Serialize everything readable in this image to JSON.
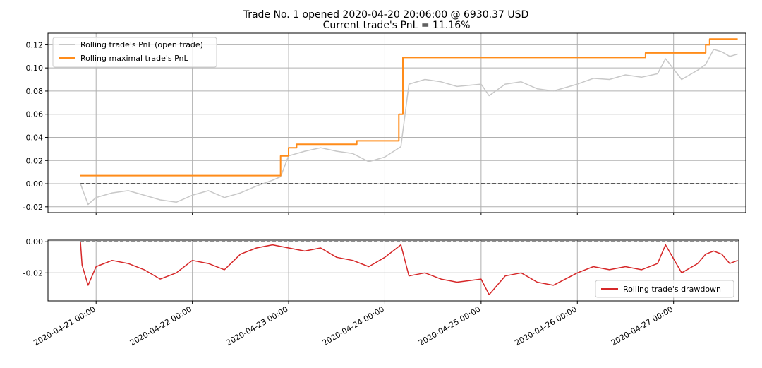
{
  "title_lines": [
    "Trade No. 1 opened 2020-04-20 20:06:00 @ 6930.37 USD",
    "Current trade's PnL = 11.16%"
  ],
  "colors": {
    "open_trade": "#c8c8c8",
    "max_pnl": "#ff8c1a",
    "drawdown": "#d62728",
    "zero_line": "#222222",
    "grid": "#b0b0b0"
  },
  "chart_data": [
    {
      "type": "line",
      "name": "pnl-panel",
      "ylim": [
        -0.025,
        0.13
      ],
      "xlim": [
        "2020-04-20 12:00",
        "2020-04-27 18:00"
      ],
      "yticks": [
        -0.02,
        0.0,
        0.02,
        0.04,
        0.06,
        0.08,
        0.1,
        0.12
      ],
      "ytick_labels": [
        "-0.02",
        "0.00",
        "0.02",
        "0.04",
        "0.06",
        "0.08",
        "0.10",
        "0.12"
      ],
      "grid": true,
      "legend_position": "top-left",
      "zero_line": true,
      "series": [
        {
          "name": "Rolling trade's PnL (open trade)",
          "color_key": "open_trade",
          "points": [
            [
              "2020-04-20 20:06",
              0.0
            ],
            [
              "2020-04-20 22:00",
              -0.018
            ],
            [
              "2020-04-21 00:00",
              -0.012
            ],
            [
              "2020-04-21 04:00",
              -0.008
            ],
            [
              "2020-04-21 08:00",
              -0.006
            ],
            [
              "2020-04-21 12:00",
              -0.01
            ],
            [
              "2020-04-21 16:00",
              -0.014
            ],
            [
              "2020-04-21 20:00",
              -0.016
            ],
            [
              "2020-04-22 00:00",
              -0.01
            ],
            [
              "2020-04-22 04:00",
              -0.006
            ],
            [
              "2020-04-22 08:00",
              -0.012
            ],
            [
              "2020-04-22 12:00",
              -0.008
            ],
            [
              "2020-04-22 16:00",
              -0.002
            ],
            [
              "2020-04-22 20:00",
              0.003
            ],
            [
              "2020-04-22 22:00",
              0.006
            ],
            [
              "2020-04-23 00:00",
              0.024
            ],
            [
              "2020-04-23 04:00",
              0.028
            ],
            [
              "2020-04-23 08:00",
              0.031
            ],
            [
              "2020-04-23 12:00",
              0.028
            ],
            [
              "2020-04-23 16:00",
              0.026
            ],
            [
              "2020-04-23 20:00",
              0.019
            ],
            [
              "2020-04-24 00:00",
              0.023
            ],
            [
              "2020-04-24 04:00",
              0.032
            ],
            [
              "2020-04-24 06:00",
              0.086
            ],
            [
              "2020-04-24 10:00",
              0.09
            ],
            [
              "2020-04-24 14:00",
              0.088
            ],
            [
              "2020-04-24 18:00",
              0.084
            ],
            [
              "2020-04-25 00:00",
              0.086
            ],
            [
              "2020-04-25 02:00",
              0.076
            ],
            [
              "2020-04-25 06:00",
              0.086
            ],
            [
              "2020-04-25 10:00",
              0.088
            ],
            [
              "2020-04-25 14:00",
              0.082
            ],
            [
              "2020-04-25 18:00",
              0.08
            ],
            [
              "2020-04-26 00:00",
              0.086
            ],
            [
              "2020-04-26 04:00",
              0.091
            ],
            [
              "2020-04-26 08:00",
              0.09
            ],
            [
              "2020-04-26 12:00",
              0.094
            ],
            [
              "2020-04-26 16:00",
              0.092
            ],
            [
              "2020-04-26 20:00",
              0.095
            ],
            [
              "2020-04-26 22:00",
              0.108
            ],
            [
              "2020-04-27 02:00",
              0.09
            ],
            [
              "2020-04-27 06:00",
              0.098
            ],
            [
              "2020-04-27 08:00",
              0.103
            ],
            [
              "2020-04-27 10:00",
              0.116
            ],
            [
              "2020-04-27 12:00",
              0.114
            ],
            [
              "2020-04-27 14:00",
              0.11
            ],
            [
              "2020-04-27 16:00",
              0.112
            ]
          ]
        },
        {
          "name": "Rolling maximal trade's PnL",
          "color_key": "max_pnl",
          "points": [
            [
              "2020-04-20 20:06",
              0.007
            ],
            [
              "2020-04-22 21:30",
              0.007
            ],
            [
              "2020-04-22 22:00",
              0.024
            ],
            [
              "2020-04-23 00:00",
              0.031
            ],
            [
              "2020-04-23 02:00",
              0.034
            ],
            [
              "2020-04-23 17:00",
              0.037
            ],
            [
              "2020-04-24 02:00",
              0.037
            ],
            [
              "2020-04-24 03:30",
              0.06
            ],
            [
              "2020-04-24 04:30",
              0.109
            ],
            [
              "2020-04-26 16:00",
              0.109
            ],
            [
              "2020-04-26 17:00",
              0.113
            ],
            [
              "2020-04-27 07:00",
              0.113
            ],
            [
              "2020-04-27 08:00",
              0.12
            ],
            [
              "2020-04-27 09:00",
              0.125
            ],
            [
              "2020-04-27 16:00",
              0.125
            ]
          ]
        }
      ]
    },
    {
      "type": "line",
      "name": "drawdown-panel",
      "ylim": [
        -0.038,
        0.001
      ],
      "xlim": [
        "2020-04-20 12:00",
        "2020-04-27 18:00"
      ],
      "yticks": [
        -0.02,
        0.0
      ],
      "ytick_labels": [
        "-0.02",
        "0.00"
      ],
      "grid": true,
      "legend_position": "bottom-right",
      "zero_line": true,
      "xticks": [
        "2020-04-21 00:00",
        "2020-04-22 00:00",
        "2020-04-23 00:00",
        "2020-04-24 00:00",
        "2020-04-25 00:00",
        "2020-04-26 00:00",
        "2020-04-27 00:00"
      ],
      "xtick_labels": [
        "2020-04-21 00:00",
        "2020-04-22 00:00",
        "2020-04-23 00:00",
        "2020-04-24 00:00",
        "2020-04-25 00:00",
        "2020-04-26 00:00",
        "2020-04-27 00:00"
      ],
      "series": [
        {
          "name": "Rolling trade's drawdown",
          "color_key": "drawdown",
          "points": [
            [
              "2020-04-20 20:06",
              0.0
            ],
            [
              "2020-04-20 20:30",
              -0.015
            ],
            [
              "2020-04-20 22:00",
              -0.028
            ],
            [
              "2020-04-21 00:00",
              -0.016
            ],
            [
              "2020-04-21 04:00",
              -0.012
            ],
            [
              "2020-04-21 08:00",
              -0.014
            ],
            [
              "2020-04-21 12:00",
              -0.018
            ],
            [
              "2020-04-21 16:00",
              -0.024
            ],
            [
              "2020-04-21 20:00",
              -0.02
            ],
            [
              "2020-04-22 00:00",
              -0.012
            ],
            [
              "2020-04-22 04:00",
              -0.014
            ],
            [
              "2020-04-22 08:00",
              -0.018
            ],
            [
              "2020-04-22 12:00",
              -0.008
            ],
            [
              "2020-04-22 16:00",
              -0.004
            ],
            [
              "2020-04-22 20:00",
              -0.002
            ],
            [
              "2020-04-23 00:00",
              -0.004
            ],
            [
              "2020-04-23 04:00",
              -0.006
            ],
            [
              "2020-04-23 08:00",
              -0.004
            ],
            [
              "2020-04-23 12:00",
              -0.01
            ],
            [
              "2020-04-23 16:00",
              -0.012
            ],
            [
              "2020-04-23 20:00",
              -0.016
            ],
            [
              "2020-04-24 00:00",
              -0.01
            ],
            [
              "2020-04-24 04:00",
              -0.002
            ],
            [
              "2020-04-24 06:00",
              -0.022
            ],
            [
              "2020-04-24 10:00",
              -0.02
            ],
            [
              "2020-04-24 14:00",
              -0.024
            ],
            [
              "2020-04-24 18:00",
              -0.026
            ],
            [
              "2020-04-25 00:00",
              -0.024
            ],
            [
              "2020-04-25 02:00",
              -0.034
            ],
            [
              "2020-04-25 06:00",
              -0.022
            ],
            [
              "2020-04-25 10:00",
              -0.02
            ],
            [
              "2020-04-25 14:00",
              -0.026
            ],
            [
              "2020-04-25 18:00",
              -0.028
            ],
            [
              "2020-04-26 00:00",
              -0.02
            ],
            [
              "2020-04-26 04:00",
              -0.016
            ],
            [
              "2020-04-26 08:00",
              -0.018
            ],
            [
              "2020-04-26 12:00",
              -0.016
            ],
            [
              "2020-04-26 16:00",
              -0.018
            ],
            [
              "2020-04-26 20:00",
              -0.014
            ],
            [
              "2020-04-26 22:00",
              -0.002
            ],
            [
              "2020-04-27 02:00",
              -0.02
            ],
            [
              "2020-04-27 06:00",
              -0.014
            ],
            [
              "2020-04-27 08:00",
              -0.008
            ],
            [
              "2020-04-27 10:00",
              -0.006
            ],
            [
              "2020-04-27 12:00",
              -0.008
            ],
            [
              "2020-04-27 14:00",
              -0.014
            ],
            [
              "2020-04-27 16:00",
              -0.012
            ]
          ]
        }
      ]
    }
  ]
}
